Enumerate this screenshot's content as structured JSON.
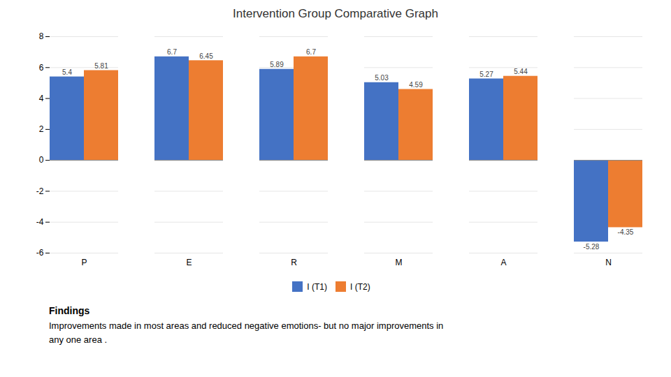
{
  "chart_data": {
    "type": "bar",
    "title": "Intervention Group Comparative Graph",
    "categories": [
      "P",
      "E",
      "R",
      "M",
      "A",
      "N"
    ],
    "series": [
      {
        "name": "I (T1)",
        "color": "#4472C4",
        "values": [
          5.4,
          6.7,
          5.89,
          5.03,
          5.27,
          -5.28
        ]
      },
      {
        "name": "I (T2)",
        "color": "#ED7D31",
        "values": [
          5.81,
          6.45,
          6.7,
          4.59,
          5.44,
          -4.35
        ]
      }
    ],
    "ylim": [
      -6,
      8
    ],
    "yticks": [
      -6,
      -4,
      -2,
      0,
      2,
      4,
      6,
      8
    ],
    "grid": true,
    "data_labels": true,
    "legend": "bottom",
    "annotations": [
      "Findings",
      "Improvements made in most areas and reduced negative emotions- but no major improvements in\nany one area ."
    ]
  }
}
